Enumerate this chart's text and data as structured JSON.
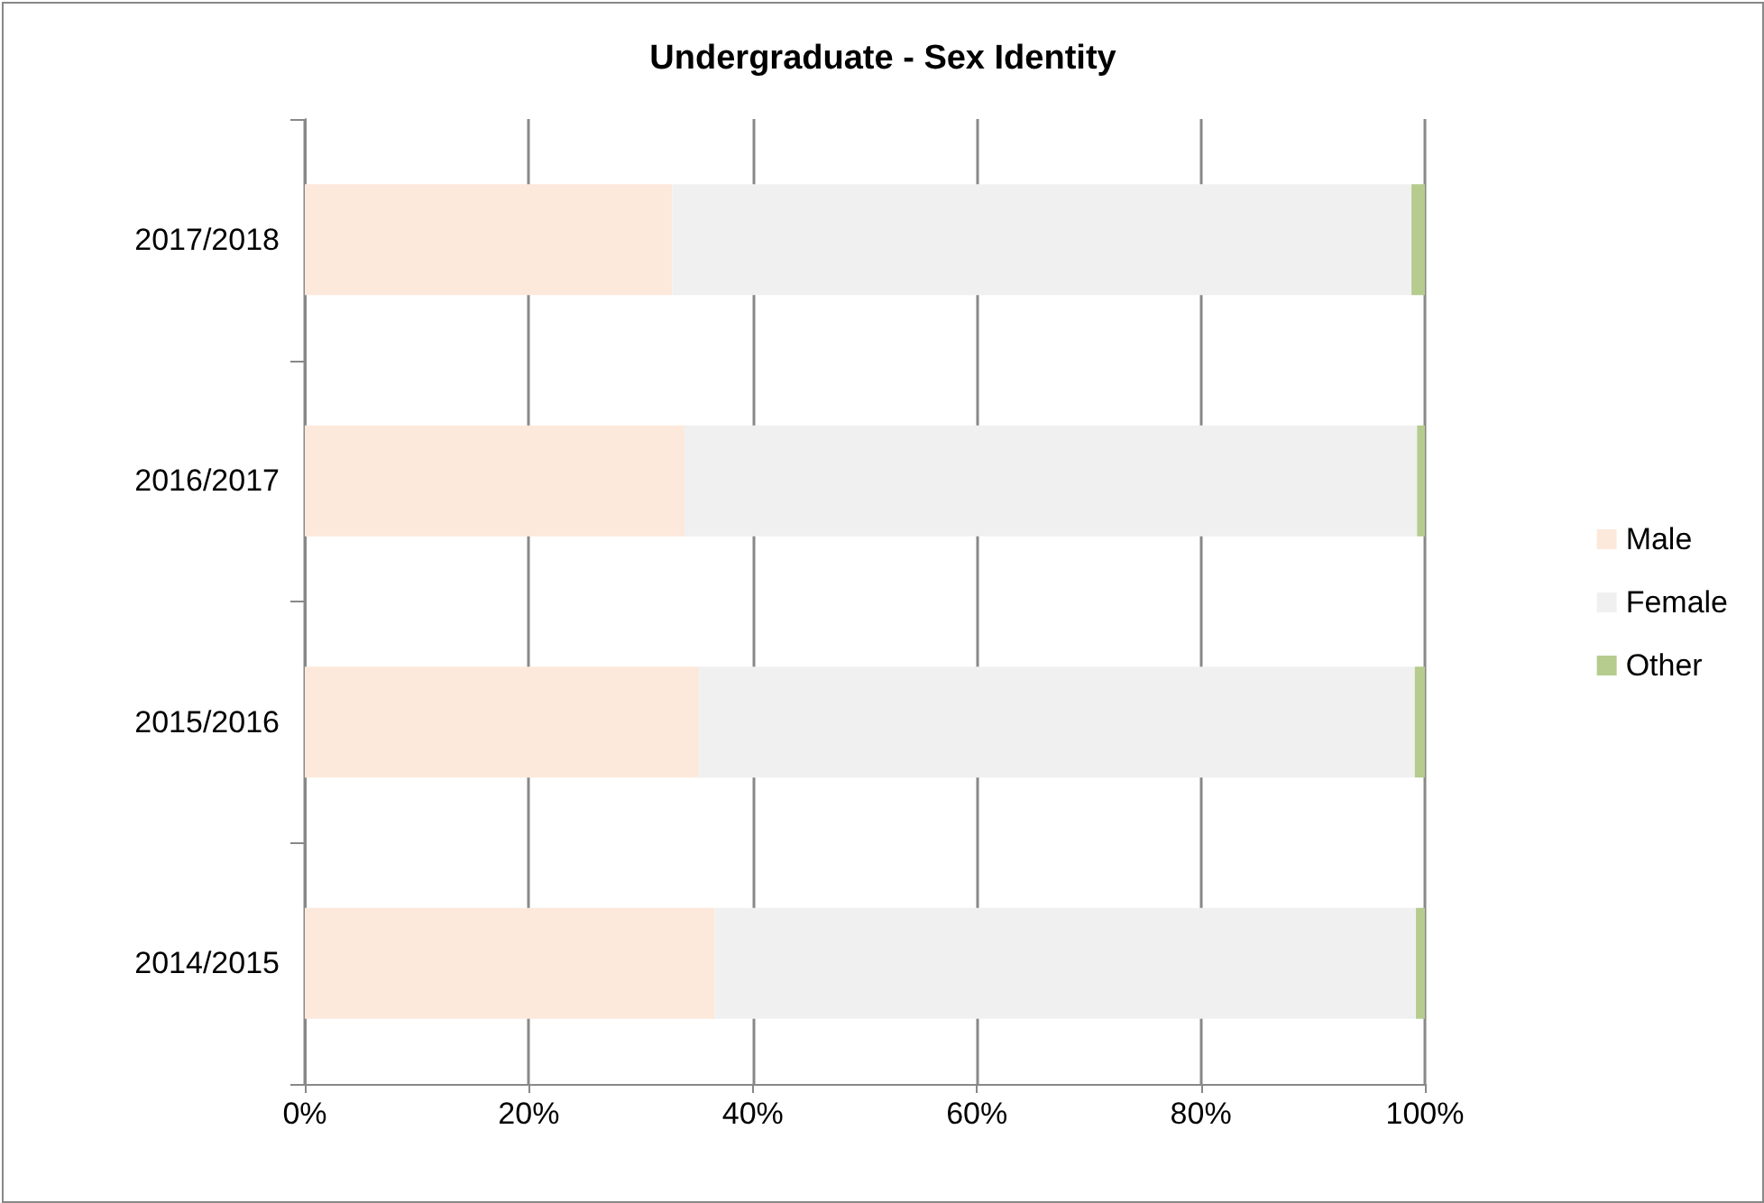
{
  "chart_data": {
    "type": "bar",
    "orientation": "horizontal",
    "stacked": true,
    "title": "Undergraduate - Sex Identity",
    "categories": [
      "2017/2018",
      "2016/2017",
      "2015/2016",
      "2014/2015"
    ],
    "series": [
      {
        "name": "Male",
        "color": "#fce9dc",
        "values": [
          32.8,
          33.9,
          35.2,
          36.6
        ]
      },
      {
        "name": "Female",
        "color": "#f0f0f0",
        "values": [
          66.0,
          65.4,
          63.9,
          62.6
        ]
      },
      {
        "name": "Other",
        "color": "#b5cc8e",
        "values": [
          1.2,
          0.7,
          0.9,
          0.8
        ]
      }
    ],
    "xlim": [
      0,
      100
    ],
    "xticks": [
      {
        "value": 0,
        "label": "0%"
      },
      {
        "value": 20,
        "label": "20%"
      },
      {
        "value": 40,
        "label": "40%"
      },
      {
        "value": 60,
        "label": "60%"
      },
      {
        "value": 80,
        "label": "80%"
      },
      {
        "value": 100,
        "label": "100%"
      }
    ],
    "grid": "x",
    "legend": "right"
  }
}
